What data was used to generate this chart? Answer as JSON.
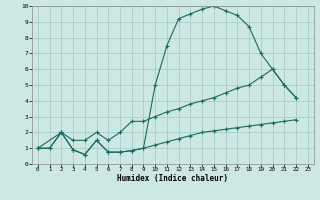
{
  "xlabel": "Humidex (Indice chaleur)",
  "bg_color": "#cce8e4",
  "grid_color": "#aaccc8",
  "line_color": "#1a6b5a",
  "xlim": [
    -0.5,
    23.5
  ],
  "ylim": [
    0,
    10
  ],
  "xticks": [
    0,
    1,
    2,
    3,
    4,
    5,
    6,
    7,
    8,
    9,
    10,
    11,
    12,
    13,
    14,
    15,
    16,
    17,
    18,
    19,
    20,
    21,
    22,
    23
  ],
  "yticks": [
    0,
    1,
    2,
    3,
    4,
    5,
    6,
    7,
    8,
    9,
    10
  ],
  "line1_x": [
    0,
    1,
    2,
    3,
    4,
    5,
    6,
    7,
    8,
    9,
    10,
    11,
    12,
    13,
    14,
    15,
    16,
    17,
    18,
    19,
    20,
    21,
    22
  ],
  "line1_y": [
    1.0,
    1.0,
    2.0,
    0.9,
    0.6,
    1.5,
    0.75,
    0.75,
    0.85,
    1.0,
    5.0,
    7.5,
    9.2,
    9.5,
    9.8,
    10.0,
    9.7,
    9.4,
    8.7,
    7.0,
    6.0,
    5.0,
    4.2
  ],
  "line2_x": [
    0,
    1,
    2,
    3,
    4,
    5,
    6,
    7,
    8,
    9,
    10,
    11,
    12,
    13,
    14,
    15,
    16,
    17,
    18,
    19,
    20,
    21,
    22
  ],
  "line2_y": [
    1.0,
    1.0,
    2.0,
    1.5,
    1.5,
    2.0,
    1.5,
    2.0,
    2.7,
    2.7,
    3.0,
    3.3,
    3.5,
    3.8,
    4.0,
    4.2,
    4.5,
    4.8,
    5.0,
    5.5,
    6.0,
    5.0,
    4.2
  ],
  "line3_x": [
    0,
    2,
    3,
    4,
    5,
    6,
    7,
    8,
    9,
    10,
    11,
    12,
    13,
    14,
    15,
    16,
    17,
    18,
    19,
    20,
    21,
    22
  ],
  "line3_y": [
    1.0,
    2.0,
    0.9,
    0.6,
    1.5,
    0.75,
    0.75,
    0.85,
    1.0,
    1.2,
    1.4,
    1.6,
    1.8,
    2.0,
    2.1,
    2.2,
    2.3,
    2.4,
    2.5,
    2.6,
    2.7,
    2.8
  ]
}
